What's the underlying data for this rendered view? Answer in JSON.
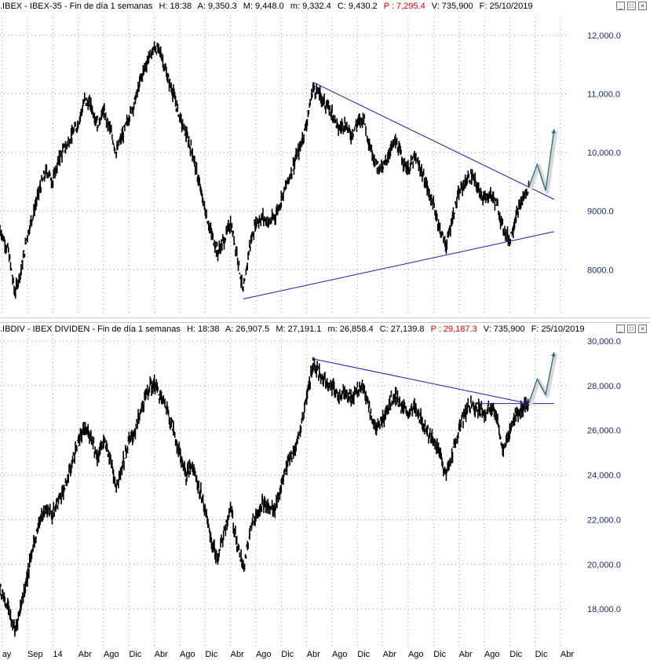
{
  "colors": {
    "price": "#000000",
    "trendline": "#1a1aaa",
    "projection": "#2a6a7a",
    "axis_text": "#1a2a7a",
    "red": "#e00000"
  },
  "top_header": {
    "name": ".IBEX - IBEX-35 - Fin de día 1 semanas",
    "h": "H: 18:38",
    "a": "A: 9,350.3",
    "m": "M: 9,448.0",
    "min": "m: 9,332.4",
    "c": "C: 9,430.2",
    "p": "P : 7,295.4",
    "v": "V: 735,900",
    "f": "F: 25/10/2019"
  },
  "bottom_header": {
    "name": ".IBDIV - IBEX DIVIDEN - Fin de día 1 semanas",
    "h": "H: 18:38",
    "a": "A: 26,907.5",
    "m": "M: 27,191.1",
    "min": "m: 26,858.4",
    "c": "C: 27,139.8",
    "p": "P : 29,187.3",
    "v": "V: 735,900",
    "f": "F: 25/10/2019"
  },
  "win_buttons": {
    "min": "_",
    "max": "□",
    "close": "×"
  },
  "chart_data": [
    {
      "type": "line",
      "ylim": [
        7400,
        12200
      ],
      "yticks": [
        8000,
        9000,
        10000,
        11000,
        12000
      ],
      "ytick_labels": [
        "8000.0",
        "9000.0",
        "10,000.0",
        "11,000.0",
        "12,000.0"
      ],
      "series": [
        {
          "values": [
            [
              0,
              8700
            ],
            [
              4,
              8300
            ],
            [
              7,
              7600
            ],
            [
              10,
              8000
            ],
            [
              13,
              8600
            ],
            [
              16,
              9000
            ],
            [
              19,
              9400
            ],
            [
              22,
              9700
            ],
            [
              25,
              9500
            ],
            [
              28,
              9900
            ],
            [
              31,
              10100
            ],
            [
              34,
              10300
            ],
            [
              37,
              10500
            ],
            [
              40,
              10900
            ],
            [
              43,
              10800
            ],
            [
              46,
              10500
            ],
            [
              49,
              10700
            ],
            [
              52,
              10400
            ],
            [
              55,
              10000
            ],
            [
              58,
              10300
            ],
            [
              61,
              10600
            ],
            [
              64,
              10900
            ],
            [
              67,
              11300
            ],
            [
              70,
              11600
            ],
            [
              73,
              11800
            ],
            [
              76,
              11700
            ],
            [
              79,
              11300
            ],
            [
              82,
              11000
            ],
            [
              85,
              10600
            ],
            [
              88,
              10300
            ],
            [
              91,
              10000
            ],
            [
              94,
              9500
            ],
            [
              97,
              9000
            ],
            [
              100,
              8600
            ],
            [
              103,
              8300
            ],
            [
              106,
              8500
            ],
            [
              109,
              8800
            ],
            [
              112,
              8300
            ],
            [
              115,
              7600
            ],
            [
              118,
              8400
            ],
            [
              121,
              8800
            ],
            [
              124,
              8900
            ],
            [
              127,
              8800
            ],
            [
              130,
              8900
            ],
            [
              133,
              9200
            ],
            [
              136,
              9500
            ],
            [
              139,
              9800
            ],
            [
              142,
              10100
            ],
            [
              145,
              10500
            ],
            [
              148,
              11100
            ],
            [
              151,
              11000
            ],
            [
              154,
              10800
            ],
            [
              157,
              10700
            ],
            [
              160,
              10400
            ],
            [
              163,
              10500
            ],
            [
              166,
              10300
            ],
            [
              169,
              10500
            ],
            [
              172,
              10600
            ],
            [
              175,
              10100
            ],
            [
              178,
              9800
            ],
            [
              181,
              9700
            ],
            [
              184,
              10000
            ],
            [
              187,
              10200
            ],
            [
              190,
              9900
            ],
            [
              193,
              9700
            ],
            [
              196,
              9900
            ],
            [
              199,
              9700
            ],
            [
              202,
              9400
            ],
            [
              205,
              9100
            ],
            [
              208,
              8700
            ],
            [
              211,
              8400
            ],
            [
              214,
              8900
            ],
            [
              217,
              9300
            ],
            [
              220,
              9500
            ],
            [
              223,
              9600
            ],
            [
              226,
              9400
            ],
            [
              229,
              9200
            ],
            [
              232,
              9300
            ],
            [
              235,
              9100
            ],
            [
              238,
              8700
            ],
            [
              241,
              8500
            ],
            [
              244,
              8900
            ],
            [
              247,
              9200
            ],
            [
              250,
              9400
            ]
          ]
        }
      ],
      "trendlines": [
        {
          "name": "resistance",
          "from": [
            148,
            11200
          ],
          "to": [
            262,
            9200
          ]
        },
        {
          "name": "support",
          "from": [
            115,
            7500
          ],
          "to": [
            262,
            8650
          ]
        }
      ],
      "projection": [
        [
          250,
          9400
        ],
        [
          254,
          9800
        ],
        [
          258,
          9350
        ],
        [
          262,
          10400
        ]
      ]
    },
    {
      "type": "line",
      "ylim": [
        16600,
        30000
      ],
      "yticks": [
        18000,
        20000,
        22000,
        24000,
        26000,
        28000,
        30000
      ],
      "ytick_labels": [
        "18,000.0",
        "20,000.0",
        "22,000.0",
        "24,000.0",
        "26,000.0",
        "28,000.0",
        "30,000.0"
      ],
      "series": [
        {
          "values": [
            [
              0,
              19000
            ],
            [
              4,
              18000
            ],
            [
              7,
              17000
            ],
            [
              10,
              18200
            ],
            [
              13,
              19500
            ],
            [
              16,
              21000
            ],
            [
              19,
              22000
            ],
            [
              22,
              22500
            ],
            [
              25,
              22200
            ],
            [
              28,
              23000
            ],
            [
              31,
              23500
            ],
            [
              34,
              24500
            ],
            [
              37,
              25500
            ],
            [
              40,
              26000
            ],
            [
              43,
              25800
            ],
            [
              46,
              24800
            ],
            [
              49,
              25500
            ],
            [
              52,
              24800
            ],
            [
              55,
              23500
            ],
            [
              58,
              24500
            ],
            [
              61,
              25500
            ],
            [
              64,
              26000
            ],
            [
              67,
              27000
            ],
            [
              70,
              27800
            ],
            [
              73,
              28100
            ],
            [
              76,
              27500
            ],
            [
              79,
              27000
            ],
            [
              82,
              26000
            ],
            [
              85,
              25000
            ],
            [
              88,
              24000
            ],
            [
              91,
              24500
            ],
            [
              94,
              23500
            ],
            [
              97,
              22500
            ],
            [
              100,
              21000
            ],
            [
              103,
              20200
            ],
            [
              106,
              21500
            ],
            [
              109,
              22500
            ],
            [
              112,
              21000
            ],
            [
              115,
              19800
            ],
            [
              118,
              21500
            ],
            [
              121,
              22200
            ],
            [
              124,
              22800
            ],
            [
              127,
              22500
            ],
            [
              130,
              22500
            ],
            [
              133,
              23500
            ],
            [
              136,
              24500
            ],
            [
              139,
              25000
            ],
            [
              142,
              26000
            ],
            [
              145,
              27500
            ],
            [
              148,
              29000
            ],
            [
              151,
              28500
            ],
            [
              154,
              28200
            ],
            [
              157,
              28000
            ],
            [
              160,
              27500
            ],
            [
              163,
              27800
            ],
            [
              166,
              27400
            ],
            [
              169,
              27800
            ],
            [
              172,
              28000
            ],
            [
              175,
              26800
            ],
            [
              178,
              26000
            ],
            [
              181,
              26500
            ],
            [
              184,
              27200
            ],
            [
              187,
              27600
            ],
            [
              190,
              27000
            ],
            [
              193,
              26800
            ],
            [
              196,
              27000
            ],
            [
              199,
              26500
            ],
            [
              202,
              26000
            ],
            [
              205,
              25500
            ],
            [
              208,
              25000
            ],
            [
              211,
              24000
            ],
            [
              214,
              25000
            ],
            [
              217,
              26000
            ],
            [
              220,
              26800
            ],
            [
              223,
              27200
            ],
            [
              226,
              27000
            ],
            [
              229,
              26800
            ],
            [
              232,
              27000
            ],
            [
              235,
              26500
            ],
            [
              238,
              25000
            ],
            [
              241,
              26000
            ],
            [
              244,
              26700
            ],
            [
              247,
              27000
            ],
            [
              250,
              27200
            ]
          ]
        }
      ],
      "trendlines": [
        {
          "name": "resistance",
          "from": [
            148,
            29200
          ],
          "to": [
            250,
            27200
          ]
        },
        {
          "name": "horizontal",
          "from": [
            226,
            27200
          ],
          "to": [
            262,
            27200
          ]
        }
      ],
      "projection": [
        [
          250,
          27200
        ],
        [
          254,
          28300
        ],
        [
          258,
          27600
        ],
        [
          262,
          29500
        ]
      ]
    }
  ],
  "x_axis": {
    "ticks": [
      {
        "x": 1,
        "label": "ay"
      },
      {
        "x": 13,
        "label": "Sep"
      },
      {
        "x": 25,
        "label": "14"
      },
      {
        "x": 37,
        "label": "Abr"
      },
      {
        "x": 49,
        "label": "Ago"
      },
      {
        "x": 61,
        "label": "Dic"
      },
      {
        "x": 73,
        "label": "Abr"
      },
      {
        "x": 85,
        "label": "Ago"
      },
      {
        "x": 97,
        "label": "Dic"
      },
      {
        "x": 109,
        "label": "Abr"
      },
      {
        "x": 121,
        "label": "Ago"
      },
      {
        "x": 133,
        "label": "Dic"
      },
      {
        "x": 145,
        "label": "Abr"
      },
      {
        "x": 157,
        "label": "Ago"
      },
      {
        "x": 169,
        "label": "Dic"
      },
      {
        "x": 181,
        "label": "Abr"
      },
      {
        "x": 193,
        "label": "Ago"
      },
      {
        "x": 205,
        "label": "Dic"
      },
      {
        "x": 217,
        "label": "Abr"
      },
      {
        "x": 229,
        "label": "Ago"
      },
      {
        "x": 241,
        "label": "Dic"
      },
      {
        "x": 253,
        "label": "Dic"
      },
      {
        "x": 265,
        "label": "Abr"
      }
    ],
    "xlim": [
      0,
      268
    ]
  }
}
